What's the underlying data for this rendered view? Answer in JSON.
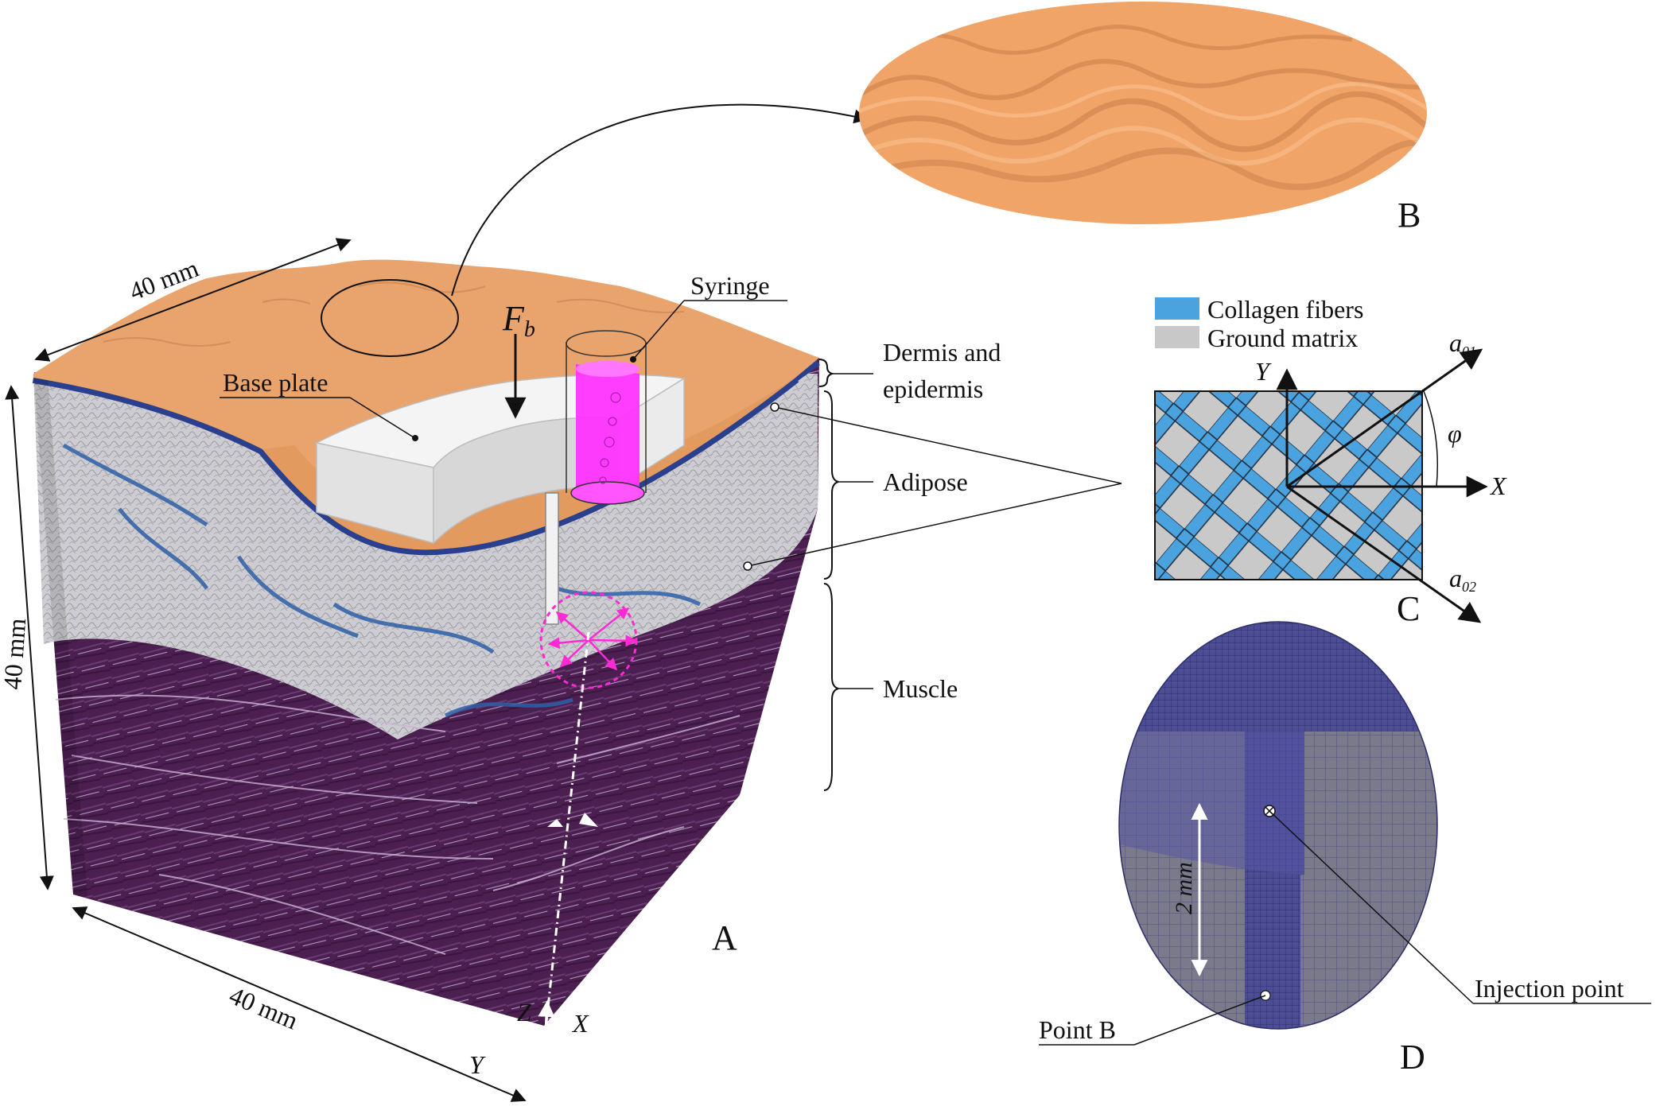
{
  "panel_letters": {
    "a": "A",
    "b": "B",
    "c": "C",
    "d": "D"
  },
  "dimensions": {
    "top": "40 mm",
    "left": "40 mm",
    "bottom": "40 mm"
  },
  "force_label": {
    "base": "F",
    "sub": "b"
  },
  "labels": {
    "base_plate": "Base plate",
    "syringe": "Syringe",
    "dermis_line1": "Dermis and",
    "dermis_line2": "epidermis",
    "adipose": "Adipose",
    "muscle": "Muscle",
    "injection_point": "Injection point",
    "point_b": "Point B",
    "two_mm": "2 mm"
  },
  "axes_a": {
    "z": "Z",
    "x": "X",
    "y": "Y"
  },
  "panel_c": {
    "legend": [
      {
        "label": "Collagen fibers",
        "color": "#4aa3df"
      },
      {
        "label": "Ground matrix",
        "color": "#c8c8c8"
      }
    ],
    "y_axis": "Y",
    "x_axis": "X",
    "phi": "φ",
    "a01": {
      "base": "a",
      "sub": "01"
    },
    "a02": {
      "base": "a",
      "sub": "02"
    }
  },
  "colors": {
    "skin": "#e8a46c",
    "fat": "#cfcfd2",
    "muscle": "#4a1f4c",
    "connective": "#2f5fa8",
    "syringe": "#ff33ff",
    "mesh_dark": "#4a4a8c",
    "mesh_light": "#78788a"
  }
}
